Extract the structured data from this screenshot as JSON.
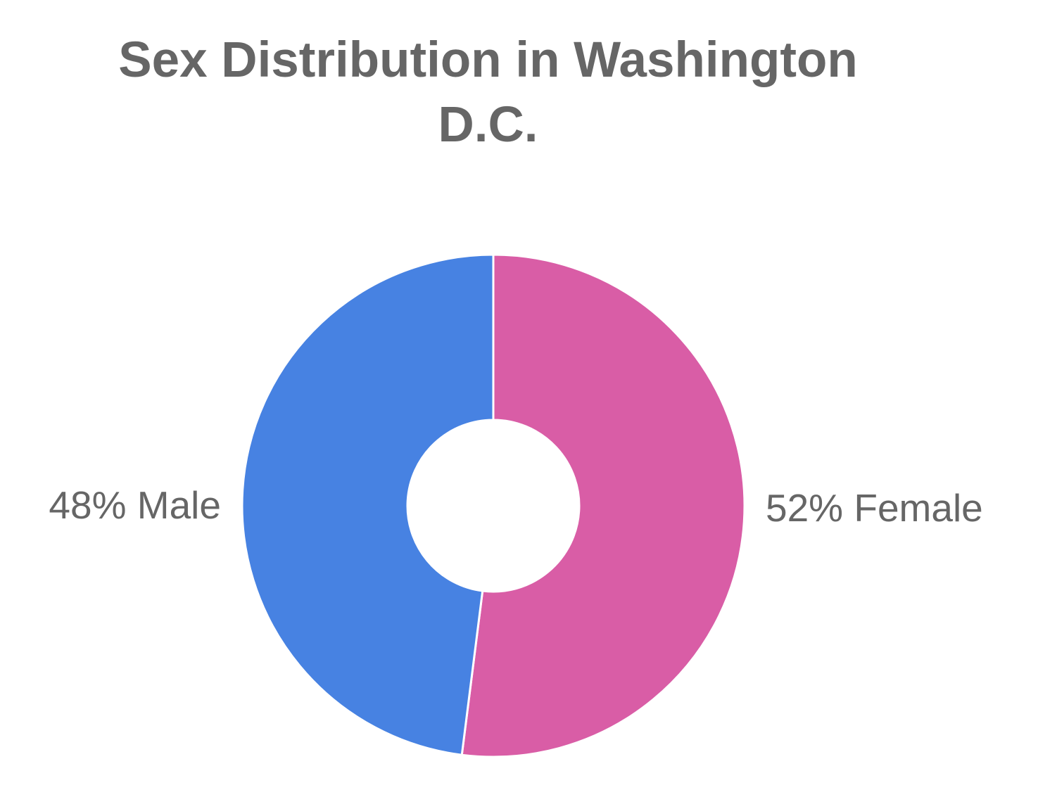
{
  "chart_data": {
    "type": "pie",
    "title_lines": [
      "Sex Distribution in Washington",
      "D.C."
    ],
    "donut": true,
    "slices": [
      {
        "label": "Female",
        "value": 52,
        "display": "52% Female",
        "color": "#d95da6"
      },
      {
        "label": "Male",
        "value": 48,
        "display": "48% Male",
        "color": "#4782e2"
      }
    ],
    "start": "top",
    "direction": "clockwise",
    "legend": "none"
  }
}
